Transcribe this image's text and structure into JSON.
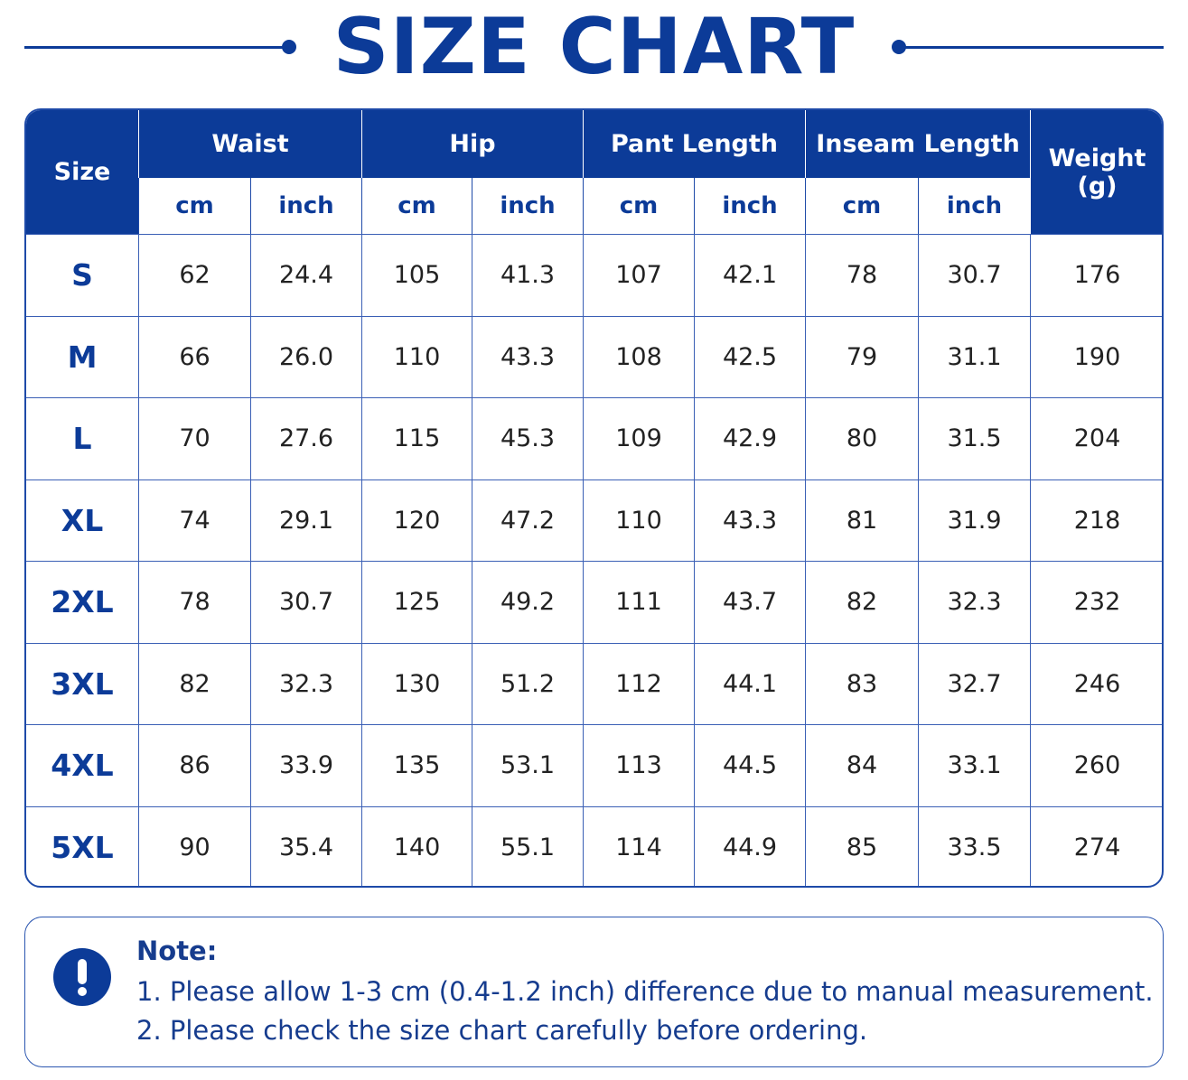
{
  "title": "SIZE CHART",
  "table": {
    "size_header": "Size",
    "groups": [
      {
        "name": "Waist",
        "units": [
          "cm",
          "inch"
        ]
      },
      {
        "name": "Hip",
        "units": [
          "cm",
          "inch"
        ]
      },
      {
        "name": "Pant Length",
        "units": [
          "cm",
          "inch"
        ]
      },
      {
        "name": "Inseam Length",
        "units": [
          "cm",
          "inch"
        ]
      }
    ],
    "weight_header": "Weight (g)",
    "rows": [
      [
        "S",
        "62",
        "24.4",
        "105",
        "41.3",
        "107",
        "42.1",
        "78",
        "30.7",
        "176"
      ],
      [
        "M",
        "66",
        "26.0",
        "110",
        "43.3",
        "108",
        "42.5",
        "79",
        "31.1",
        "190"
      ],
      [
        "L",
        "70",
        "27.6",
        "115",
        "45.3",
        "109",
        "42.9",
        "80",
        "31.5",
        "204"
      ],
      [
        "XL",
        "74",
        "29.1",
        "120",
        "47.2",
        "110",
        "43.3",
        "81",
        "31.9",
        "218"
      ],
      [
        "2XL",
        "78",
        "30.7",
        "125",
        "49.2",
        "111",
        "43.7",
        "82",
        "32.3",
        "232"
      ],
      [
        "3XL",
        "82",
        "32.3",
        "130",
        "51.2",
        "112",
        "44.1",
        "83",
        "32.7",
        "246"
      ],
      [
        "4XL",
        "86",
        "33.9",
        "135",
        "53.1",
        "113",
        "44.5",
        "84",
        "33.1",
        "260"
      ],
      [
        "5XL",
        "90",
        "35.4",
        "140",
        "55.1",
        "114",
        "44.9",
        "85",
        "33.5",
        "274"
      ]
    ]
  },
  "note": {
    "heading": "Note:",
    "lines": [
      "1. Please allow 1-3 cm (0.4-1.2 inch) difference due to manual measurement.",
      "2. Please check the size chart carefully before ordering."
    ]
  }
}
